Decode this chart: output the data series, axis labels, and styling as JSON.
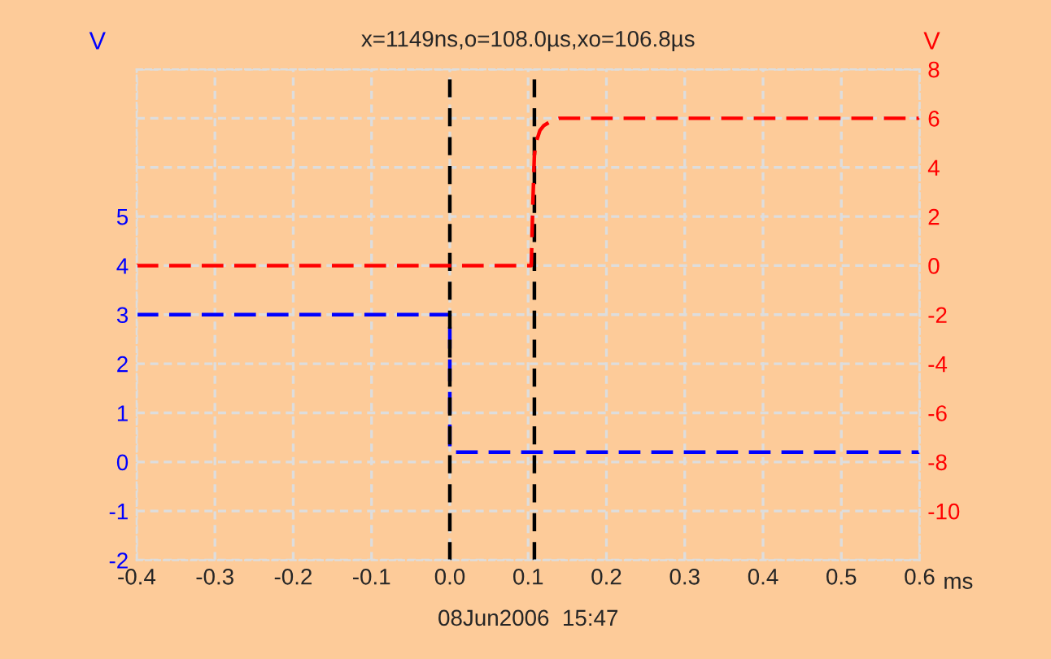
{
  "chart_data": {
    "type": "line",
    "title": "x=1149ns,o=108.0µs,xo=106.8µs",
    "xlabel": "ms",
    "ylabel": "V",
    "y2label": "V",
    "series": [
      {
        "color": "#0000ff",
        "x": [
          -0.4,
          -0.3,
          -0.2,
          -0.1,
          0.0,
          0.0,
          0.002,
          0.1,
          0.2,
          0.3,
          0.4,
          0.5,
          0.6
        ],
        "values": [
          3.0,
          3.0,
          3.0,
          3.0,
          3.0,
          0.3,
          0.2,
          0.2,
          0.2,
          0.2,
          0.2,
          0.2,
          0.2
        ]
      },
      {
        "color": "#ff0000",
        "axis": "y2",
        "x": [
          -0.4,
          -0.2,
          0.0,
          0.1,
          0.104,
          0.106,
          0.108,
          0.11,
          0.115,
          0.12,
          0.13,
          0.14,
          0.2,
          0.4,
          0.6
        ],
        "values": [
          0,
          0,
          0,
          0,
          0,
          2.5,
          4.5,
          5.0,
          5.5,
          5.7,
          5.9,
          6.0,
          6.0,
          6.0,
          6.0
        ]
      }
    ],
    "xlim": [
      -0.4,
      0.6
    ],
    "xticks": [
      -0.4,
      -0.3,
      -0.2,
      -0.1,
      {
        "value": 0,
        "label": "0.0"
      },
      0.1,
      0.2,
      0.3,
      0.4,
      0.5,
      0.6
    ],
    "ylim": [
      -2,
      8
    ],
    "yticks": [
      -2,
      -1,
      0,
      1,
      2,
      3,
      4,
      5
    ],
    "y2lim": [
      -12,
      8
    ],
    "y2ticks": [
      -10,
      -8,
      -6,
      -4,
      -2,
      0,
      2,
      4,
      6,
      8
    ],
    "ref_lines": [
      {
        "axis": "x",
        "value": 0.0,
        "color": "#000000",
        "line_style": "dashed"
      },
      {
        "axis": "x",
        "value": 0.108,
        "color": "#000000",
        "line_style": "dashed"
      }
    ],
    "annotations": [
      "08Jun2006  15:47"
    ],
    "grid": true,
    "line_style": "dashed",
    "legend": false
  }
}
